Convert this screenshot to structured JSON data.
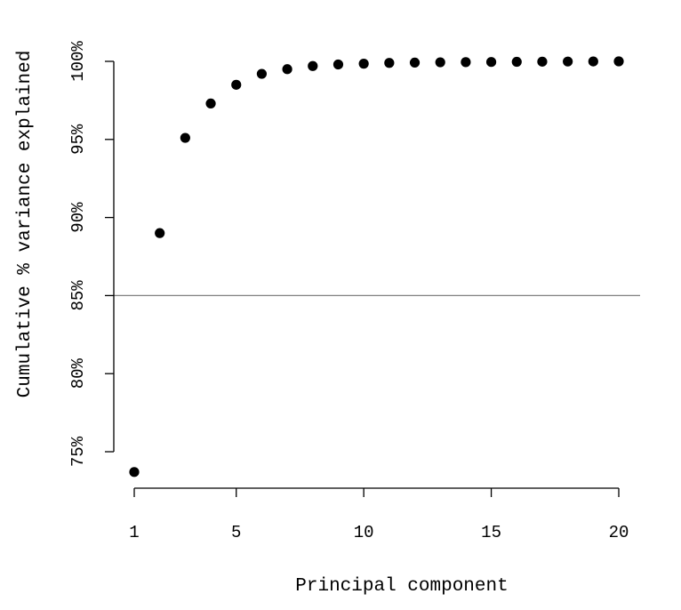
{
  "chart_data": {
    "type": "scatter",
    "xlabel": "Principal component",
    "ylabel": "Cumulative % variance explained",
    "x": [
      1,
      2,
      3,
      4,
      5,
      6,
      7,
      8,
      9,
      10,
      11,
      12,
      13,
      14,
      15,
      16,
      17,
      18,
      19,
      20
    ],
    "y": [
      73.7,
      89.0,
      95.1,
      97.3,
      98.5,
      99.2,
      99.5,
      99.7,
      99.8,
      99.85,
      99.9,
      99.92,
      99.94,
      99.95,
      99.96,
      99.97,
      99.98,
      99.99,
      99.995,
      100.0
    ],
    "xticks": [
      1,
      5,
      10,
      15,
      20
    ],
    "xtick_labels": [
      "1",
      "5",
      "10",
      "15",
      "20"
    ],
    "yticks": [
      75,
      80,
      85,
      90,
      95,
      100
    ],
    "ytick_labels": [
      "75%",
      "80%",
      "85%",
      "90%",
      "95%",
      "100%"
    ],
    "xlim": [
      1,
      20
    ],
    "ylim": [
      75,
      100
    ],
    "reference_line": 85,
    "grid": false,
    "colors": {
      "points": "#000000",
      "axes": "#000000",
      "reference_line": "#808080"
    }
  }
}
